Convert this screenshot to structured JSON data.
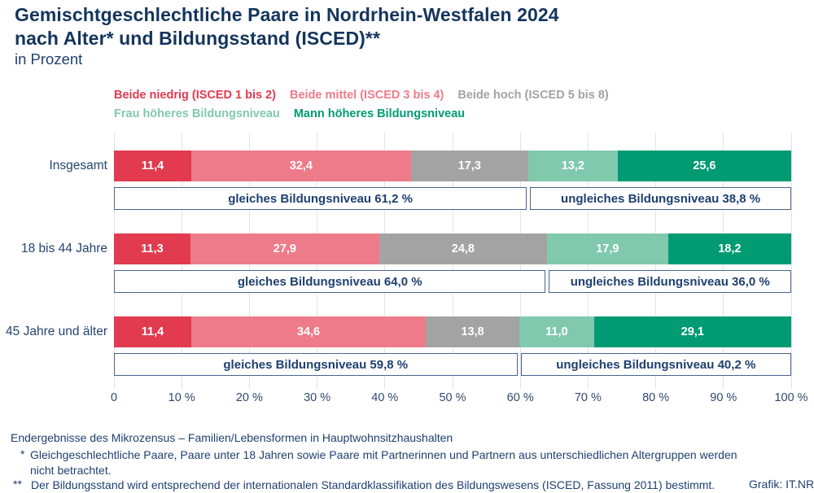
{
  "header": {
    "title_line1": "Gemischtgeschlechtliche Paare in Nordrhein-Westfalen 2024",
    "title_line2": "nach Alter* und Bildungsstand (ISCED)**",
    "subtitle": "in Prozent"
  },
  "legend": {
    "rows": [
      [
        {
          "label": "Beide niedrig (ISCED 1 bis 2)",
          "color": "#e23a4e"
        },
        {
          "label": "Beide mittel (ISCED 3 bis 4)",
          "color": "#ee7b89"
        },
        {
          "label": "Beide hoch (ISCED 5 bis 8)",
          "color": "#a4a3a3"
        }
      ],
      [
        {
          "label": "Frau höheres Bildungsniveau",
          "color": "#80c9ad"
        },
        {
          "label": "Mann höheres Bildungsniveau",
          "color": "#009b72"
        }
      ]
    ]
  },
  "chart_data": {
    "type": "bar",
    "orientation": "horizontal",
    "stacked": true,
    "unit": "percent",
    "categories": [
      "Insgesamt",
      "18 bis 44 Jahre",
      "45 Jahre und älter"
    ],
    "series": [
      {
        "name": "Beide niedrig (ISCED 1 bis 2)",
        "color": "#e23a4e",
        "values": [
          11.4,
          11.3,
          11.4
        ]
      },
      {
        "name": "Beide mittel (ISCED 3 bis 4)",
        "color": "#ee7b89",
        "values": [
          32.4,
          27.9,
          34.6
        ]
      },
      {
        "name": "Beide hoch (ISCED 5 bis 8)",
        "color": "#a4a3a3",
        "values": [
          17.3,
          24.8,
          13.8
        ]
      },
      {
        "name": "Frau höheres Bildungsniveau",
        "color": "#80c9ad",
        "values": [
          13.2,
          17.9,
          11.0
        ]
      },
      {
        "name": "Mann höheres Bildungsniveau",
        "color": "#009b72",
        "values": [
          25.6,
          18.2,
          29.1
        ]
      }
    ],
    "annotations": [
      {
        "equal_label": "gleiches Bildungsniveau 61,2 %",
        "equal_pct": 61.2,
        "unequal_label": "ungleiches Bildungsniveau 38,8 %",
        "unequal_pct": 38.8
      },
      {
        "equal_label": "gleiches Bildungsniveau 64,0 %",
        "equal_pct": 64.0,
        "unequal_label": "ungleiches Bildungsniveau 36,0 %",
        "unequal_pct": 36.0
      },
      {
        "equal_label": "gleiches Bildungsniveau 59,8 %",
        "equal_pct": 59.8,
        "unequal_label": "ungleiches Bildungsniveau 40,2 %",
        "unequal_pct": 40.2
      }
    ],
    "x_ticks": [
      "0",
      "10 %",
      "20 %",
      "30 %",
      "40 %",
      "50 %",
      "60 %",
      "70 %",
      "80 %",
      "90 %",
      "100 %"
    ],
    "xlim": [
      0,
      100
    ],
    "grid": true,
    "legend_position": "top"
  },
  "footer": {
    "source": "Endergebnisse des Mikrozensus – Familien/Lebensformen in Hauptwohnsitzhaushalten",
    "footnotes": [
      {
        "marker": "*",
        "text": "Gleichgeschlechtliche Paare, Paare unter 18 Jahren sowie Paare mit Partnerinnen und Partnern aus unterschiedlichen Altergruppen werden nicht betrachtet."
      },
      {
        "marker": "**",
        "text": "Der Bildungsstand wird entsprechend der internationalen Standardklassifikation des Bildungswesens (ISCED, Fassung 2011) bestimmt."
      }
    ],
    "credit": "Grafik: IT.NRW"
  },
  "colors": {
    "title_navy": "#14355c",
    "text_navy": "#1e4070",
    "annotation_border": "#49648f",
    "gridline": "#dfe3e8"
  }
}
